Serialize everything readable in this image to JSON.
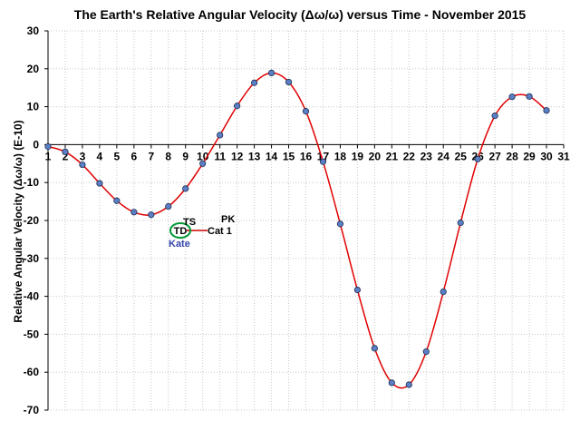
{
  "chart_data": {
    "type": "line",
    "title": "The Earth's Relative Angular Velocity (Δω/ω) versus Time - November 2015",
    "xlabel": "",
    "ylabel": "Relative Angular Velocity (Δω/ω) (E-10)",
    "xlim": [
      1,
      31
    ],
    "ylim": [
      -70,
      30
    ],
    "x_ticks": [
      1,
      2,
      3,
      4,
      5,
      6,
      7,
      8,
      9,
      10,
      11,
      12,
      13,
      14,
      15,
      16,
      17,
      18,
      19,
      20,
      21,
      22,
      23,
      24,
      25,
      26,
      27,
      28,
      29,
      30,
      31
    ],
    "y_ticks": [
      30,
      20,
      10,
      0,
      -10,
      -20,
      -30,
      -40,
      -50,
      -60,
      -70
    ],
    "grid": true,
    "series": [
      {
        "name": "Relative Angular Velocity",
        "line_color": "#e00000",
        "marker_color": "#5b7fc4",
        "x": [
          1,
          2,
          3,
          4,
          5,
          6,
          7,
          8,
          9,
          10,
          11,
          12,
          13,
          14,
          15,
          16,
          17,
          18,
          19,
          20,
          21,
          22,
          23,
          24,
          25,
          26,
          27,
          28,
          29,
          30
        ],
        "values": [
          -0.5,
          -1.9,
          -5.3,
          -10.2,
          -14.8,
          -17.8,
          -18.5,
          -16.3,
          -11.6,
          -5.0,
          2.5,
          10.2,
          16.3,
          18.9,
          16.5,
          8.8,
          -4.5,
          -20.9,
          -38.3,
          -53.7,
          -62.8,
          -63.3,
          -54.6,
          -38.8,
          -20.6,
          -3.8,
          7.6,
          12.6,
          12.7,
          9.0
        ]
      }
    ],
    "annotations": {
      "ts": "TS",
      "pk": "PK",
      "td": "TD",
      "cat1": "Cat 1",
      "storm_name": "Kate",
      "storm_color": "#3344aa",
      "circle_color": "#009933",
      "line_color": "#cc0000"
    }
  }
}
